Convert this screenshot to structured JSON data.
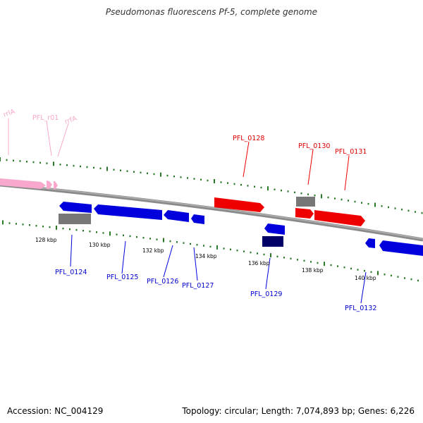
{
  "title": "Pseudomonas fluorescens Pf-5, complete genome",
  "footer": {
    "accession": "Accession: NC_004129",
    "summary": "Topology: circular; Length: 7,074,893 bp; Genes: 6,226"
  },
  "colors": {
    "rna": "#f7a8cc",
    "plus": "#ee0000",
    "minus": "#0000dd",
    "pseudo": "#777777",
    "dark": "#000066",
    "ticks": "#2a7a2a",
    "backbone": "#8a8a8a"
  },
  "scale_labels": [
    "128 kbp",
    "130 kbp",
    "132 kbp",
    "134 kbp",
    "136 kbp",
    "138 kbp",
    "140 kbp"
  ],
  "gene_labels": {
    "top_rna": [
      "rrlA",
      "PFL_r01",
      "rrfA"
    ],
    "top_plus": [
      "PFL_0128",
      "PFL_0130",
      "PFL_0131"
    ],
    "bottom_minus": [
      "PFL_0124",
      "PFL_0125",
      "PFL_0126",
      "PFL_0127",
      "PFL_0129",
      "PFL_0132"
    ]
  }
}
